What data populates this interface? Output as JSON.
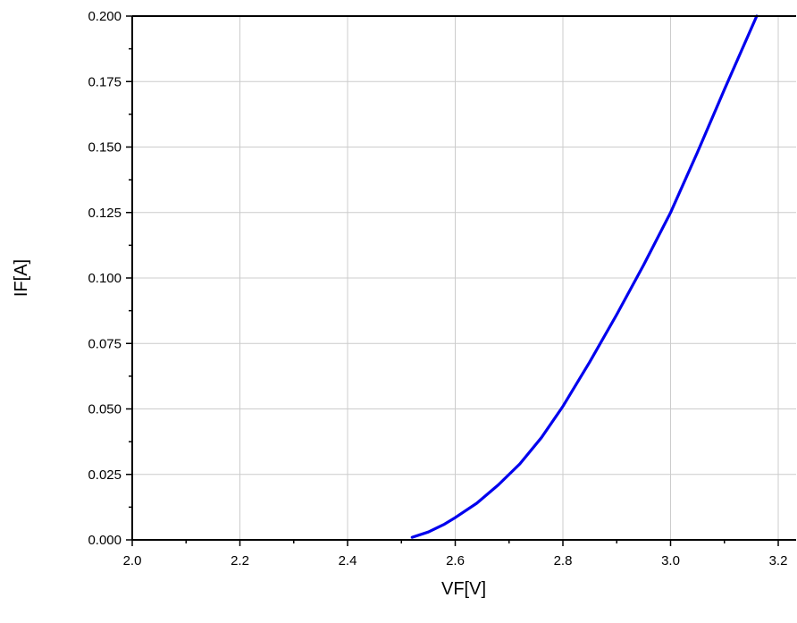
{
  "chart_data": {
    "type": "line",
    "title": "",
    "xlabel": "VF[V]",
    "ylabel": "IF[A]",
    "xlim": [
      2.0,
      3.2
    ],
    "ylim": [
      0.0,
      0.2
    ],
    "x_ticks": [
      "2.0",
      "2.2",
      "2.4",
      "2.6",
      "2.8",
      "3.0",
      "3.2"
    ],
    "y_ticks": [
      "0.000",
      "0.025",
      "0.050",
      "0.075",
      "0.100",
      "0.125",
      "0.150",
      "0.175",
      "0.200"
    ],
    "grid": true,
    "series": [
      {
        "color": "#0000ee",
        "x": [
          2.52,
          2.55,
          2.58,
          2.6,
          2.64,
          2.68,
          2.72,
          2.76,
          2.8,
          2.85,
          2.9,
          2.95,
          3.0,
          3.05,
          3.1,
          3.16
        ],
        "y": [
          0.001,
          0.003,
          0.006,
          0.0085,
          0.014,
          0.021,
          0.029,
          0.039,
          0.051,
          0.068,
          0.086,
          0.105,
          0.125,
          0.148,
          0.172,
          0.2
        ]
      }
    ]
  }
}
